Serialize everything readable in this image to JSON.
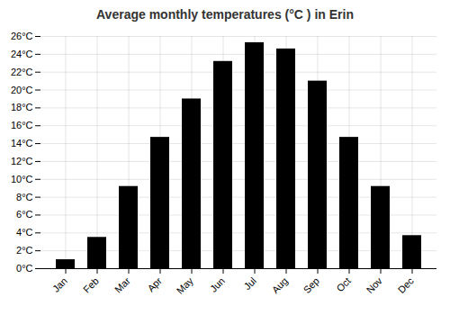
{
  "chart_data": {
    "type": "bar",
    "title": "Average monthly temperatures (°C ) in Erin",
    "categories": [
      "Jan",
      "Feb",
      "Mar",
      "Apr",
      "May",
      "Jun",
      "Jul",
      "Aug",
      "Sep",
      "Oct",
      "Nov",
      "Dec"
    ],
    "values": [
      1.0,
      3.5,
      9.2,
      14.7,
      19.0,
      23.2,
      25.3,
      24.6,
      21.0,
      14.7,
      9.2,
      3.7
    ],
    "ylim": [
      0,
      26
    ],
    "yticks": [
      {
        "value": 0,
        "label": "0°C"
      },
      {
        "value": 2,
        "label": "2°C"
      },
      {
        "value": 4,
        "label": "4°C"
      },
      {
        "value": 6,
        "label": "6°C"
      },
      {
        "value": 8,
        "label": "8°C"
      },
      {
        "value": 10,
        "label": "10°C"
      },
      {
        "value": 12,
        "label": "12°C"
      },
      {
        "value": 14,
        "label": "14°C"
      },
      {
        "value": 16,
        "label": "16°C"
      },
      {
        "value": 18,
        "label": "18°C"
      },
      {
        "value": 20,
        "label": "20°C"
      },
      {
        "value": 22,
        "label": "22°C"
      },
      {
        "value": 24,
        "label": "24°C"
      },
      {
        "value": 26,
        "label": "26°C"
      }
    ],
    "grid": true
  }
}
